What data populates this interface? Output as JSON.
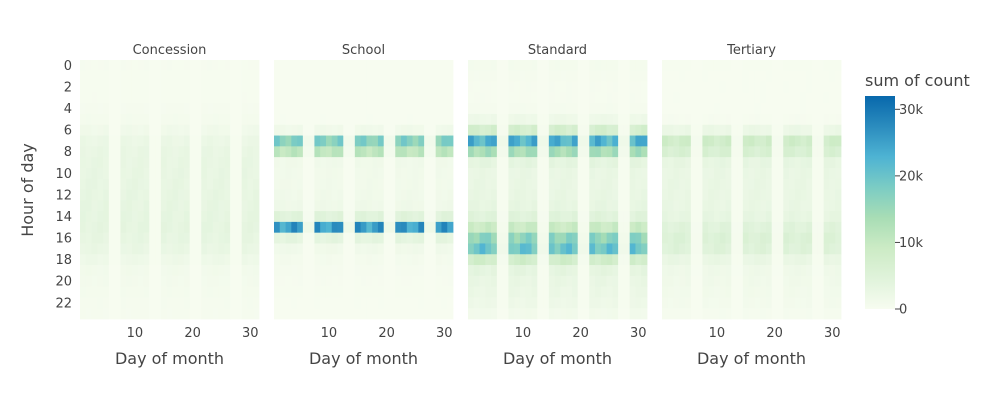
{
  "chart_data": {
    "type": "heatmap",
    "facets": [
      "Concession",
      "School",
      "Standard",
      "Tertiary"
    ],
    "xlabel": "Day of month",
    "ylabel": "Hour of day",
    "x_ticks": [
      10,
      20,
      30
    ],
    "y_ticks": [
      0,
      2,
      4,
      6,
      8,
      10,
      12,
      14,
      16,
      18,
      20,
      22
    ],
    "xlim": [
      0.5,
      31.5
    ],
    "ylim": [
      -0.5,
      23.5
    ],
    "colorbar": {
      "title": "sum of count",
      "range": [
        0,
        32000
      ],
      "ticks": [
        0,
        10000,
        20000,
        30000
      ],
      "tick_labels": [
        "0",
        "10k",
        "20k",
        "30k"
      ],
      "colorscale": [
        "#f7fcf0",
        "#e0f3db",
        "#ccebc5",
        "#a8ddb5",
        "#7bccc4",
        "#4eb3d3",
        "#2b8cbe",
        "#0868ac"
      ]
    },
    "weekend_days": [
      6,
      7,
      13,
      14,
      20,
      21,
      27,
      28
    ],
    "hourly_profile_weekday": {
      "Concession": [
        300,
        200,
        200,
        250,
        400,
        700,
        1500,
        2500,
        3000,
        3200,
        3300,
        3400,
        3500,
        3600,
        3700,
        3800,
        3500,
        3000,
        2000,
        1200,
        900,
        700,
        500,
        400
      ],
      "School": [
        0,
        0,
        0,
        0,
        0,
        100,
        1500,
        19000,
        12000,
        1500,
        1300,
        1300,
        1500,
        1800,
        5000,
        28000,
        4000,
        1500,
        800,
        400,
        300,
        200,
        100,
        50
      ],
      "Standard": [
        700,
        400,
        300,
        300,
        500,
        2000,
        8000,
        25000,
        15000,
        4000,
        3000,
        3000,
        3200,
        3500,
        5000,
        10000,
        18000,
        22000,
        9000,
        4000,
        3000,
        2500,
        2000,
        1200
      ],
      "Tertiary": [
        200,
        100,
        100,
        100,
        100,
        300,
        2500,
        9000,
        7000,
        3500,
        3000,
        3000,
        3000,
        3000,
        3500,
        5000,
        6000,
        5500,
        3000,
        1800,
        1500,
        1200,
        900,
        500
      ]
    }
  }
}
